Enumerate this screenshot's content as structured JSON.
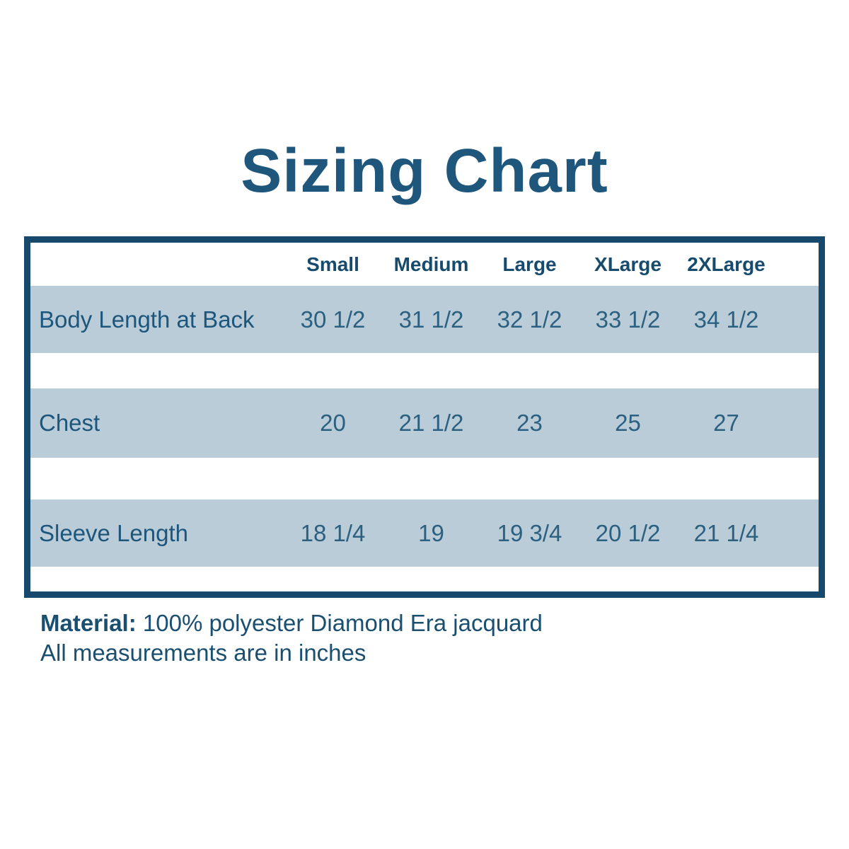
{
  "title": "Sizing Chart",
  "colors": {
    "title_text": "#1e567c",
    "table_border": "#16496b",
    "row_stripe": "#b9ccd7",
    "header_text": "#174b6e",
    "value_text": "#2b6081"
  },
  "chart_data": {
    "type": "table",
    "title": "Sizing Chart",
    "columns": [
      "Small",
      "Medium",
      "Large",
      "XLarge",
      "2XLarge"
    ],
    "rows": [
      {
        "label": "Body Length at Back",
        "values": [
          "30 1/2",
          "31 1/2",
          "32 1/2",
          "33 1/2",
          "34 1/2"
        ]
      },
      {
        "label": "Chest",
        "values": [
          "20",
          "21 1/2",
          "23",
          "25",
          "27"
        ]
      },
      {
        "label": "Sleeve Length",
        "values": [
          "18 1/4",
          "19",
          "19 3/4",
          "20 1/2",
          "21 1/4"
        ]
      }
    ],
    "layout_hints": {
      "striped_rows": true,
      "header_position": "top",
      "label_column_position": "left"
    }
  },
  "footer": {
    "material_label": "Material:",
    "material_value": "100% polyester Diamond Era jacquard",
    "note": "All measurements are in inches"
  }
}
